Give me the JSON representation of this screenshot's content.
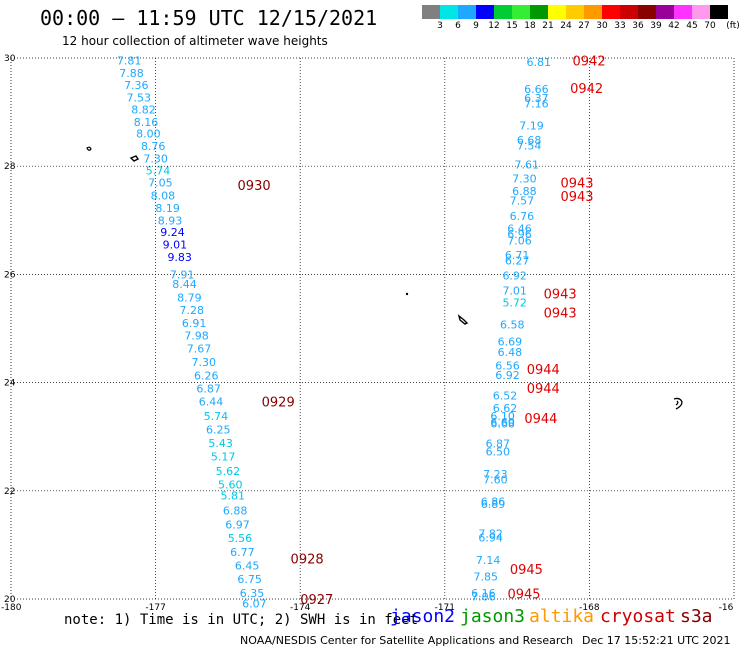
{
  "header": {
    "title": "00:00 – 11:59 UTC 12/15/2021",
    "subtitle": "12 hour collection of altimeter wave heights"
  },
  "colorbar": {
    "unit": "(ft)",
    "colors": [
      "#808080",
      "#00e5e5",
      "#1fa8ff",
      "#0000ff",
      "#00cc33",
      "#33ee33",
      "#009900",
      "#ffff00",
      "#ffcc00",
      "#ff9900",
      "#ff0000",
      "#cc0000",
      "#880000",
      "#990099",
      "#ff33ff",
      "#ff99ee",
      "#000000"
    ],
    "labels": [
      "3",
      "6",
      "9",
      "12",
      "15",
      "18",
      "21",
      "24",
      "27",
      "30",
      "33",
      "36",
      "39",
      "42",
      "45",
      "70"
    ]
  },
  "map": {
    "lon_min": -180,
    "lon_max": -165,
    "lat_min": 20,
    "lat_max": 30,
    "x_ticks": [
      "-180",
      "-177",
      "-174",
      "-171",
      "-168",
      "-16"
    ],
    "y_ticks": [
      "30",
      "28",
      "26",
      "24",
      "22",
      "20"
    ],
    "jason3_passes": [
      {
        "time": "0930",
        "lon": -175.3,
        "lat": 27.65
      },
      {
        "time": "0929",
        "lon": -174.8,
        "lat": 23.65
      },
      {
        "time": "0928",
        "lon": -174.2,
        "lat": 20.75
      },
      {
        "time": "0927",
        "lon": -174.0,
        "lat": 20.0
      }
    ],
    "cryosat_passes": [
      {
        "time": "0942",
        "lon": -168.35,
        "lat": 29.95
      },
      {
        "time": "0942",
        "lon": -168.4,
        "lat": 29.45
      },
      {
        "time": "0943",
        "lon": -168.6,
        "lat": 27.7
      },
      {
        "time": "0943",
        "lon": -168.6,
        "lat": 27.45
      },
      {
        "time": "0943",
        "lon": -168.95,
        "lat": 25.65
      },
      {
        "time": "0943",
        "lon": -168.95,
        "lat": 25.3
      },
      {
        "time": "0944",
        "lon": -169.3,
        "lat": 24.25
      },
      {
        "time": "0944",
        "lon": -169.3,
        "lat": 23.9
      },
      {
        "time": "0944",
        "lon": -169.35,
        "lat": 23.35
      },
      {
        "time": "0945",
        "lon": -169.65,
        "lat": 20.55
      },
      {
        "time": "0945",
        "lon": -169.7,
        "lat": 20.1
      }
    ],
    "track_west": [
      {
        "v": "7.81",
        "lon": -177.55,
        "lat": 29.95
      },
      {
        "v": "7.88",
        "lon": -177.5,
        "lat": 29.72
      },
      {
        "v": "7.36",
        "lon": -177.4,
        "lat": 29.5
      },
      {
        "v": "7.53",
        "lon": -177.35,
        "lat": 29.27
      },
      {
        "v": "8.82",
        "lon": -177.25,
        "lat": 29.05
      },
      {
        "v": "8.16",
        "lon": -177.2,
        "lat": 28.82
      },
      {
        "v": "8.00",
        "lon": -177.15,
        "lat": 28.6
      },
      {
        "v": "8.76",
        "lon": -177.05,
        "lat": 28.37
      },
      {
        "v": "7.30",
        "lon": -177.0,
        "lat": 28.14
      },
      {
        "v": "5.74",
        "lon": -176.95,
        "lat": 27.92
      },
      {
        "v": "7.05",
        "lon": -176.9,
        "lat": 27.7
      },
      {
        "v": "8.08",
        "lon": -176.85,
        "lat": 27.46
      },
      {
        "v": "8.19",
        "lon": -176.75,
        "lat": 27.23
      },
      {
        "v": "8.93",
        "lon": -176.7,
        "lat": 27.0
      },
      {
        "v": "9.24",
        "lon": -176.65,
        "lat": 26.78
      },
      {
        "v": "9.01",
        "lon": -176.6,
        "lat": 26.55
      },
      {
        "v": "9.83",
        "lon": -176.5,
        "lat": 26.32
      },
      {
        "v": "7.91",
        "lon": -176.45,
        "lat": 26.0
      },
      {
        "v": "8.44",
        "lon": -176.4,
        "lat": 25.82
      },
      {
        "v": "8.79",
        "lon": -176.3,
        "lat": 25.57
      },
      {
        "v": "7.28",
        "lon": -176.25,
        "lat": 25.34
      },
      {
        "v": "6.91",
        "lon": -176.2,
        "lat": 25.1
      },
      {
        "v": "7.98",
        "lon": -176.15,
        "lat": 24.87
      },
      {
        "v": "7.67",
        "lon": -176.1,
        "lat": 24.63
      },
      {
        "v": "7.30",
        "lon": -176.0,
        "lat": 24.38
      },
      {
        "v": "6.26",
        "lon": -175.95,
        "lat": 24.13
      },
      {
        "v": "6.87",
        "lon": -175.9,
        "lat": 23.89
      },
      {
        "v": "6.44",
        "lon": -175.85,
        "lat": 23.65
      },
      {
        "v": "5.74",
        "lon": -175.75,
        "lat": 23.38
      },
      {
        "v": "6.25",
        "lon": -175.7,
        "lat": 23.13
      },
      {
        "v": "5.43",
        "lon": -175.65,
        "lat": 22.88
      },
      {
        "v": "5.17",
        "lon": -175.6,
        "lat": 22.63
      },
      {
        "v": "5.62",
        "lon": -175.5,
        "lat": 22.37
      },
      {
        "v": "5.60",
        "lon": -175.45,
        "lat": 22.12
      },
      {
        "v": "5.81",
        "lon": -175.4,
        "lat": 21.91
      },
      {
        "v": "6.88",
        "lon": -175.35,
        "lat": 21.64
      },
      {
        "v": "6.97",
        "lon": -175.3,
        "lat": 21.38
      },
      {
        "v": "5.56",
        "lon": -175.25,
        "lat": 21.13
      },
      {
        "v": "6.77",
        "lon": -175.2,
        "lat": 20.87
      },
      {
        "v": "6.45",
        "lon": -175.1,
        "lat": 20.62
      },
      {
        "v": "6.75",
        "lon": -175.05,
        "lat": 20.37
      },
      {
        "v": "6.35",
        "lon": -175.0,
        "lat": 20.11
      },
      {
        "v": "6.07",
        "lon": -174.95,
        "lat": 19.92
      }
    ],
    "track_east": [
      {
        "v": "6.81",
        "lon": -169.05,
        "lat": 29.93
      },
      {
        "v": "6.66",
        "lon": -169.1,
        "lat": 29.43
      },
      {
        "v": "6.37",
        "lon": -169.1,
        "lat": 29.26
      },
      {
        "v": "7.16",
        "lon": -169.1,
        "lat": 29.16
      },
      {
        "v": "7.19",
        "lon": -169.2,
        "lat": 28.75
      },
      {
        "v": "6.68",
        "lon": -169.25,
        "lat": 28.48
      },
      {
        "v": "7.54",
        "lon": -169.25,
        "lat": 28.38
      },
      {
        "v": "7.61",
        "lon": -169.3,
        "lat": 28.03
      },
      {
        "v": "7.30",
        "lon": -169.35,
        "lat": 27.77
      },
      {
        "v": "6.88",
        "lon": -169.35,
        "lat": 27.54
      },
      {
        "v": "7.57",
        "lon": -169.4,
        "lat": 27.37
      },
      {
        "v": "6.76",
        "lon": -169.4,
        "lat": 27.08
      },
      {
        "v": "6.46",
        "lon": -169.45,
        "lat": 26.85
      },
      {
        "v": "6.96",
        "lon": -169.45,
        "lat": 26.75
      },
      {
        "v": "7.06",
        "lon": -169.45,
        "lat": 26.63
      },
      {
        "v": "6.71",
        "lon": -169.5,
        "lat": 26.36
      },
      {
        "v": "6.27",
        "lon": -169.5,
        "lat": 26.26
      },
      {
        "v": "6.92",
        "lon": -169.55,
        "lat": 25.98
      },
      {
        "v": "7.01",
        "lon": -169.55,
        "lat": 25.7
      },
      {
        "v": "5.72",
        "lon": -169.55,
        "lat": 25.48
      },
      {
        "v": "6.58",
        "lon": -169.6,
        "lat": 25.07
      },
      {
        "v": "6.69",
        "lon": -169.65,
        "lat": 24.76
      },
      {
        "v": "6.48",
        "lon": -169.65,
        "lat": 24.57
      },
      {
        "v": "6.56",
        "lon": -169.7,
        "lat": 24.32
      },
      {
        "v": "6.92",
        "lon": -169.7,
        "lat": 24.14
      },
      {
        "v": "6.52",
        "lon": -169.75,
        "lat": 23.76
      },
      {
        "v": "6.62",
        "lon": -169.75,
        "lat": 23.53
      },
      {
        "v": "6.10",
        "lon": -169.8,
        "lat": 23.38
      },
      {
        "v": "6.60",
        "lon": -169.8,
        "lat": 23.27
      },
      {
        "v": "6.68",
        "lon": -169.8,
        "lat": 23.24
      },
      {
        "v": "6.87",
        "lon": -169.9,
        "lat": 22.87
      },
      {
        "v": "6.50",
        "lon": -169.9,
        "lat": 22.73
      },
      {
        "v": "7.23",
        "lon": -169.95,
        "lat": 22.31
      },
      {
        "v": "7.60",
        "lon": -169.95,
        "lat": 22.21
      },
      {
        "v": "6.86",
        "lon": -170.0,
        "lat": 21.8
      },
      {
        "v": "6.89",
        "lon": -170.0,
        "lat": 21.76
      },
      {
        "v": "7.82",
        "lon": -170.05,
        "lat": 21.21
      },
      {
        "v": "6.94",
        "lon": -170.05,
        "lat": 21.14
      },
      {
        "v": "7.14",
        "lon": -170.1,
        "lat": 20.72
      },
      {
        "v": "7.85",
        "lon": -170.15,
        "lat": 20.42
      },
      {
        "v": "6.16",
        "lon": -170.2,
        "lat": 20.11
      },
      {
        "v": "7.06",
        "lon": -170.2,
        "lat": 20.05
      }
    ]
  },
  "footer": {
    "note": "note: 1) Time is in UTC; 2) SWH is in feet",
    "legend": [
      {
        "name": "jason2",
        "color": "#0000ff"
      },
      {
        "name": "jason3",
        "color": "#009900"
      },
      {
        "name": "altika",
        "color": "#ff9900"
      },
      {
        "name": "cryosat",
        "color": "#cc0000"
      },
      {
        "name": "s3a",
        "color": "#880000"
      }
    ],
    "organization": "NOAA/NESDIS Center for Satellite Applications and Research",
    "timestamp": "Dec 17 15:52:21 UTC 2021"
  }
}
